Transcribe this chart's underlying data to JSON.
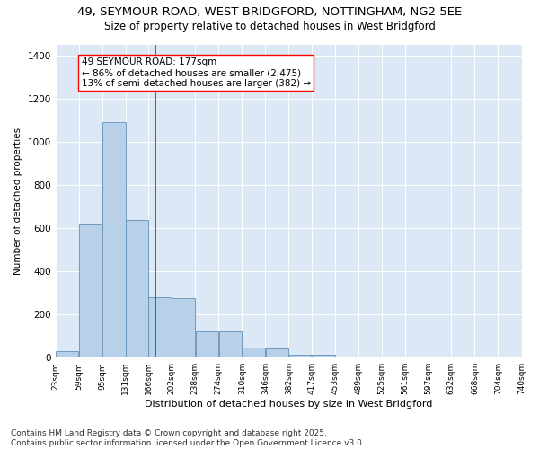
{
  "title1": "49, SEYMOUR ROAD, WEST BRIDGFORD, NOTTINGHAM, NG2 5EE",
  "title2": "Size of property relative to detached houses in West Bridgford",
  "xlabel": "Distribution of detached houses by size in West Bridgford",
  "ylabel": "Number of detached properties",
  "bar_color": "#b8d0e8",
  "bar_edge_color": "#6090b8",
  "vline_color": "red",
  "vline_x": 177,
  "bg_color": "#dce8f5",
  "annotation_text": "49 SEYMOUR ROAD: 177sqm\n← 86% of detached houses are smaller (2,475)\n13% of semi-detached houses are larger (382) →",
  "bins": [
    23,
    59,
    95,
    131,
    166,
    202,
    238,
    274,
    310,
    346,
    382,
    417,
    453,
    489,
    525,
    561,
    597,
    632,
    668,
    704,
    740
  ],
  "bin_labels": [
    "23sqm",
    "59sqm",
    "95sqm",
    "131sqm",
    "166sqm",
    "202sqm",
    "238sqm",
    "274sqm",
    "310sqm",
    "346sqm",
    "382sqm",
    "417sqm",
    "453sqm",
    "489sqm",
    "525sqm",
    "561sqm",
    "597sqm",
    "632sqm",
    "668sqm",
    "704sqm",
    "740sqm"
  ],
  "bar_heights": [
    30,
    620,
    1090,
    640,
    280,
    275,
    120,
    120,
    45,
    42,
    15,
    12,
    0,
    0,
    0,
    0,
    0,
    0,
    0,
    0
  ],
  "ylim": [
    0,
    1450
  ],
  "yticks": [
    0,
    200,
    400,
    600,
    800,
    1000,
    1200,
    1400
  ],
  "footer": "Contains HM Land Registry data © Crown copyright and database right 2025.\nContains public sector information licensed under the Open Government Licence v3.0.",
  "title1_fontsize": 9.5,
  "title2_fontsize": 8.5,
  "annotation_fontsize": 7.5,
  "footer_fontsize": 6.5,
  "ylabel_fontsize": 7.5,
  "xlabel_fontsize": 8.0,
  "ytick_fontsize": 7.5,
  "xtick_fontsize": 6.5
}
